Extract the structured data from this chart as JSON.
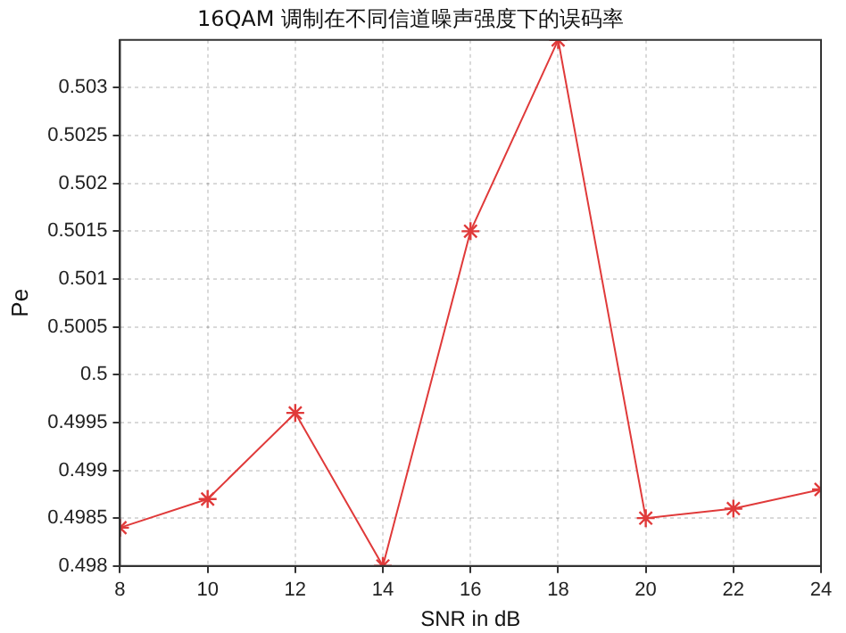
{
  "chart_data": {
    "type": "line",
    "title": "16QAM 调制在不同信道噪声强度下的误码率",
    "xlabel": "SNR in dB",
    "ylabel": "Pe",
    "x": [
      8,
      10,
      12,
      14,
      16,
      18,
      20,
      22,
      24
    ],
    "series": [
      {
        "color": "#e03a3a",
        "values": [
          0.4984,
          0.4987,
          0.4996,
          0.498,
          0.5015,
          0.5035,
          0.4985,
          0.4986,
          0.4988
        ]
      }
    ],
    "xlim": [
      8,
      24
    ],
    "xticks": [
      8,
      10,
      12,
      14,
      16,
      18,
      20,
      22,
      24
    ],
    "ylim": [
      0.498,
      0.5035
    ],
    "yticks": [
      0.498,
      0.4985,
      0.499,
      0.4995,
      0.5,
      0.5005,
      0.501,
      0.5015,
      0.502,
      0.5025,
      0.503
    ],
    "grid": true,
    "marker": "cross",
    "line_style": "solid",
    "legend": false
  }
}
